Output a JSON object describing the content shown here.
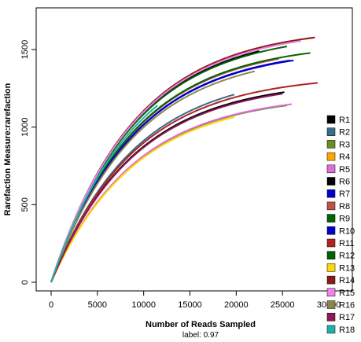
{
  "chart_data": {
    "type": "line",
    "xlabel": "Number of Reads Sampled",
    "ylabel": "Rarefaction Measure:rarefaction",
    "subtitle": "label: 0.97",
    "xlim": [
      0,
      30000
    ],
    "ylim": [
      0,
      1700
    ],
    "x_ticks": [
      "0",
      "5000",
      "10000",
      "15000",
      "20000",
      "25000",
      "30000"
    ],
    "y_ticks": [
      "0",
      "500",
      "1000",
      "1500"
    ],
    "x_tick_values": [
      0,
      5000,
      10000,
      15000,
      20000,
      25000,
      30000
    ],
    "y_tick_values": [
      0,
      500,
      1000,
      1500
    ],
    "grid": false,
    "legend_position": "right",
    "series": [
      {
        "name": "R1",
        "color": "#000000",
        "x_max": 25200,
        "y_end": 1225
      },
      {
        "name": "R2",
        "color": "#3a6b8a",
        "x_max": 19800,
        "y_end": 1210
      },
      {
        "name": "R3",
        "color": "#6b8e23",
        "x_max": 25500,
        "y_end": 1140
      },
      {
        "name": "R4",
        "color": "#ffa500",
        "x_max": 28200,
        "y_end": 1575
      },
      {
        "name": "R5",
        "color": "#da70d6",
        "x_max": 26000,
        "y_end": 1148
      },
      {
        "name": "R6",
        "color": "#000000",
        "x_max": 22500,
        "y_end": 1490
      },
      {
        "name": "R7",
        "color": "#0000cd",
        "x_max": 26200,
        "y_end": 1430
      },
      {
        "name": "R8",
        "color": "#c0504d",
        "x_max": 24600,
        "y_end": 1440
      },
      {
        "name": "R9",
        "color": "#006400",
        "x_max": 28000,
        "y_end": 1478
      },
      {
        "name": "R10",
        "color": "#0000cd",
        "x_max": 25800,
        "y_end": 1430
      },
      {
        "name": "R11",
        "color": "#b22222",
        "x_max": 28800,
        "y_end": 1285
      },
      {
        "name": "R12",
        "color": "#006400",
        "x_max": 25500,
        "y_end": 1520
      },
      {
        "name": "R13",
        "color": "#ffd700",
        "x_max": 19800,
        "y_end": 1065
      },
      {
        "name": "R14",
        "color": "#8b1a1a",
        "x_max": 28500,
        "y_end": 1578
      },
      {
        "name": "R15",
        "color": "#ee82ee",
        "x_max": 27000,
        "y_end": 1555
      },
      {
        "name": "R16",
        "color": "#8b864e",
        "x_max": 22000,
        "y_end": 1360
      },
      {
        "name": "R17",
        "color": "#8b1a5a",
        "x_max": 25000,
        "y_end": 1215
      },
      {
        "name": "R18",
        "color": "#20b2aa",
        "x_max": 11500,
        "y_end": 1140
      }
    ]
  }
}
